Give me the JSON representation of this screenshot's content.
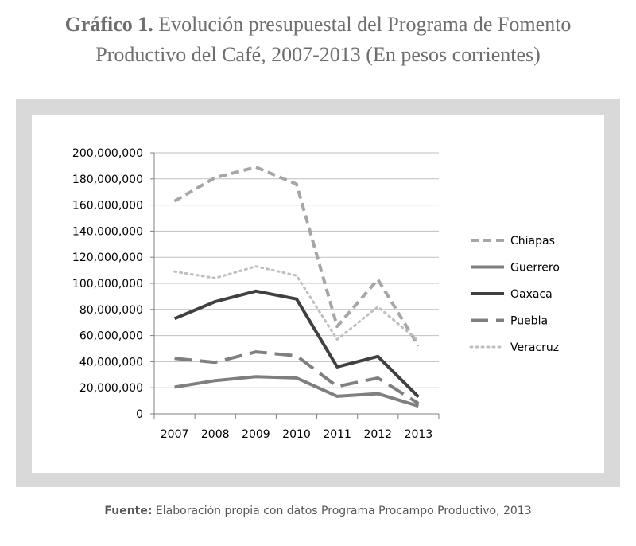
{
  "title": {
    "lead": "Gráfico 1.",
    "line1": "Evolución presupuestal del Programa de Fomento",
    "line2": "Productivo del Café, 2007-2013 (En pesos corrientes)"
  },
  "source": {
    "label": "Fuente:",
    "text": "Elaboración propia con datos Programa Procampo Productivo, 2013"
  },
  "colors": {
    "frame": "#d9d9d9",
    "grid": "#bfbfbf",
    "axis": "#7f7f7f"
  },
  "chart_data": {
    "type": "line",
    "title": "Evolución presupuestal del Programa de Fomento Productivo del Café, 2007-2013 (En pesos corrientes)",
    "xlabel": "",
    "ylabel": "",
    "categories": [
      "2007",
      "2008",
      "2009",
      "2010",
      "2011",
      "2012",
      "2013"
    ],
    "ylim": [
      0,
      200000000
    ],
    "yticks": [
      0,
      20000000,
      40000000,
      60000000,
      80000000,
      100000000,
      120000000,
      140000000,
      160000000,
      180000000,
      200000000
    ],
    "ytick_labels": [
      "0",
      "20,000,000",
      "40,000,000",
      "60,000,000",
      "80,000,000",
      "100,000,000",
      "120,000,000",
      "140,000,000",
      "160,000,000",
      "180,000,000",
      "200,000,000"
    ],
    "grid": true,
    "legend_position": "right",
    "series": [
      {
        "name": "Chiapas",
        "values": [
          163000000,
          181000000,
          189000000,
          176000000,
          67000000,
          103000000,
          52000000
        ],
        "color": "#a6a6a6",
        "dash": "square-dash",
        "width": 4
      },
      {
        "name": "Guerrero",
        "values": [
          20500000,
          25500000,
          28500000,
          27500000,
          13500000,
          15500000,
          6000000
        ],
        "color": "#7f7f7f",
        "dash": "solid",
        "width": 4
      },
      {
        "name": "Oaxaca",
        "values": [
          73000000,
          86000000,
          94000000,
          88000000,
          36000000,
          44000000,
          13000000
        ],
        "color": "#404040",
        "dash": "solid",
        "width": 4
      },
      {
        "name": "Puebla",
        "values": [
          42500000,
          39500000,
          47500000,
          44500000,
          21000000,
          27500000,
          8000000
        ],
        "color": "#7f7f7f",
        "dash": "long-dash",
        "width": 4
      },
      {
        "name": "Veracruz",
        "values": [
          109000000,
          104000000,
          113000000,
          106000000,
          57000000,
          82000000,
          56000000
        ],
        "color": "#bfbfbf",
        "dash": "dot",
        "width": 3
      }
    ]
  }
}
